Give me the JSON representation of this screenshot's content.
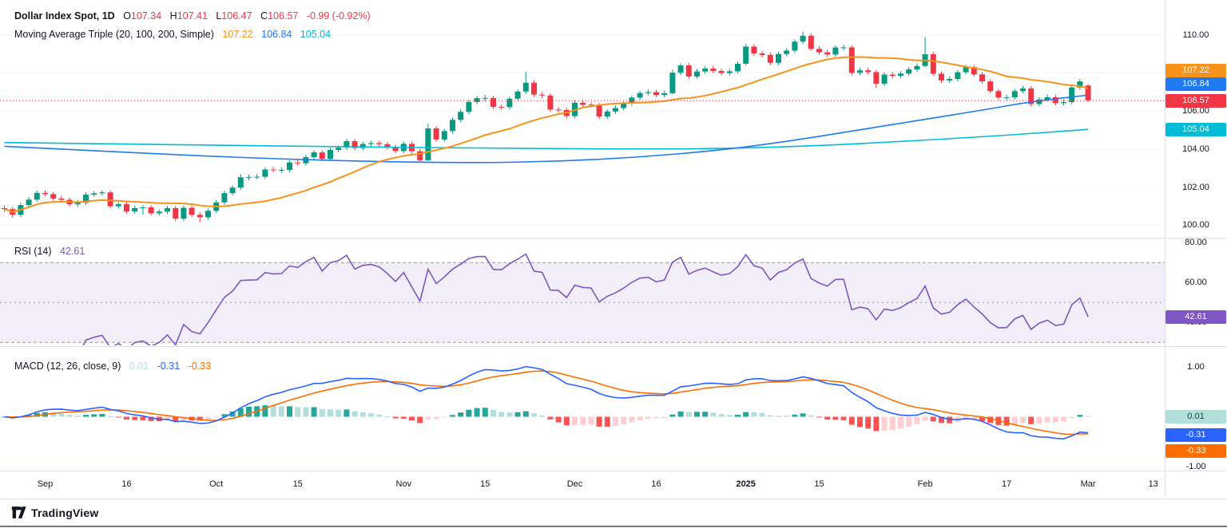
{
  "header": {
    "title": "Dollar Index Spot, 1D",
    "ohlc": {
      "o_label": "O",
      "o": "107.34",
      "h_label": "H",
      "h": "107.41",
      "l_label": "L",
      "l": "106.47",
      "c_label": "C",
      "c": "106.57",
      "change": "-0.99 (-0.92%)"
    },
    "ma_label": "Moving Average Triple (20, 100, 200, Simple)",
    "ma_values": {
      "ma20": "107.22",
      "ma100": "106.84",
      "ma200": "105.04"
    }
  },
  "rsi_legend": {
    "label": "RSI (14)",
    "value": "42.61"
  },
  "macd_legend": {
    "label": "MACD (12, 26, close, 9)",
    "hist": "0.01",
    "macd": "-0.31",
    "signal": "-0.33"
  },
  "axis": {
    "badge_values": {
      "ma20": "107.22",
      "ma100": "106.84",
      "last": "106.57",
      "ma200": "105.04",
      "rsi": "42.61",
      "macd_hist": "0.01",
      "macd_line": "-0.31",
      "macd_signal": "-0.33"
    }
  },
  "footer": {
    "brand": "TradingView"
  },
  "colors": {
    "up": "#089981",
    "down": "#F23645",
    "ma20": "#F7931A",
    "ma100": "#2179F2",
    "ma200": "#00BCD4",
    "rsi": "#7E57C2",
    "rsi_band": "rgba(126,87,194,0.10)",
    "macd_line": "#2962FF",
    "macd_signal": "#FF6D00",
    "hist_grow_above": "#26A69A",
    "hist_fall_above": "#B2DFDB",
    "hist_grow_below": "#FFCDD2",
    "hist_fall_below": "#FF5252",
    "hist_badge_bg": "#B2DFDB",
    "hist_badge_text": "#14463C",
    "axis_text": "#131722",
    "grid": "#F0F3FA",
    "separator": "#E0E3EB",
    "frame": "#4A4E57"
  },
  "chart_data": {
    "type": "candlestick",
    "title": "Dollar Index Spot, 1D",
    "price": {
      "ylim": [
        99.6,
        111.0
      ],
      "last_close": 106.57,
      "ticks": [
        {
          "value": 110,
          "label": "110.00"
        },
        {
          "value": 108,
          "label": "108.00"
        },
        {
          "value": 106,
          "label": "106.00"
        },
        {
          "value": 104,
          "label": "104.00"
        },
        {
          "value": 102,
          "label": "102.00"
        },
        {
          "value": 100,
          "label": "100.00"
        }
      ],
      "candles": [
        [
          100.9,
          101.05,
          100.7,
          100.85
        ],
        [
          100.85,
          100.97,
          100.4,
          100.55
        ],
        [
          100.55,
          101.18,
          100.43,
          101.06
        ],
        [
          101.06,
          101.48,
          100.94,
          101.35
        ],
        [
          101.35,
          101.82,
          101.23,
          101.7
        ],
        [
          101.7,
          101.84,
          101.52,
          101.64
        ],
        [
          101.64,
          101.76,
          101.29,
          101.41
        ],
        [
          101.41,
          101.55,
          101.22,
          101.34
        ],
        [
          101.34,
          101.46,
          100.98,
          101.1
        ],
        [
          101.1,
          101.33,
          100.96,
          101.19
        ],
        [
          101.19,
          101.73,
          101.07,
          101.61
        ],
        [
          101.61,
          101.8,
          101.49,
          101.68
        ],
        [
          101.68,
          101.85,
          101.56,
          101.73
        ],
        [
          101.73,
          101.85,
          100.88,
          101.0
        ],
        [
          101.0,
          101.23,
          100.88,
          101.11
        ],
        [
          101.11,
          101.23,
          100.61,
          100.73
        ],
        [
          100.73,
          101.02,
          100.61,
          100.9
        ],
        [
          100.9,
          101.06,
          100.56,
          100.94
        ],
        [
          100.94,
          101.06,
          100.51,
          100.63
        ],
        [
          100.63,
          100.84,
          100.51,
          100.72
        ],
        [
          100.72,
          101.02,
          100.6,
          100.9
        ],
        [
          100.9,
          101.02,
          100.23,
          100.35
        ],
        [
          100.35,
          101.04,
          100.23,
          100.92
        ],
        [
          100.92,
          101.04,
          100.43,
          100.55
        ],
        [
          100.55,
          100.67,
          100.16,
          100.42
        ],
        [
          100.42,
          100.88,
          100.3,
          100.76
        ],
        [
          100.76,
          101.32,
          100.64,
          101.2
        ],
        [
          101.2,
          101.81,
          101.08,
          101.69
        ],
        [
          101.69,
          102.1,
          101.57,
          101.98
        ],
        [
          101.98,
          102.69,
          101.86,
          102.52
        ],
        [
          102.52,
          102.66,
          102.35,
          102.54
        ],
        [
          102.54,
          102.7,
          102.42,
          102.55
        ],
        [
          102.55,
          103.05,
          102.43,
          102.93
        ],
        [
          102.93,
          103.07,
          102.77,
          102.89
        ],
        [
          102.89,
          103.03,
          102.75,
          102.91
        ],
        [
          102.91,
          103.42,
          102.79,
          103.3
        ],
        [
          103.3,
          103.44,
          103.14,
          103.26
        ],
        [
          103.26,
          103.7,
          103.14,
          103.58
        ],
        [
          103.58,
          103.95,
          103.46,
          103.83
        ],
        [
          103.83,
          103.95,
          103.37,
          103.49
        ],
        [
          103.49,
          104.08,
          103.37,
          103.96
        ],
        [
          103.96,
          104.2,
          103.84,
          104.08
        ],
        [
          104.08,
          104.54,
          103.96,
          104.42
        ],
        [
          104.42,
          104.54,
          103.94,
          104.06
        ],
        [
          104.06,
          104.39,
          103.94,
          104.27
        ],
        [
          104.27,
          104.44,
          104.15,
          104.32
        ],
        [
          104.32,
          104.44,
          104.14,
          104.26
        ],
        [
          104.26,
          104.38,
          103.98,
          104.1
        ],
        [
          104.1,
          104.22,
          103.78,
          103.9
        ],
        [
          103.9,
          104.4,
          103.78,
          104.28
        ],
        [
          104.28,
          104.4,
          103.77,
          103.89
        ],
        [
          103.89,
          104.01,
          103.3,
          103.42
        ],
        [
          103.42,
          105.33,
          103.37,
          105.09
        ],
        [
          105.09,
          105.21,
          104.39,
          104.51
        ],
        [
          104.51,
          105.07,
          104.39,
          104.95
        ],
        [
          104.95,
          105.66,
          104.83,
          105.54
        ],
        [
          105.54,
          106.08,
          105.42,
          105.96
        ],
        [
          105.96,
          106.6,
          105.84,
          106.48
        ],
        [
          106.48,
          106.8,
          106.36,
          106.68
        ],
        [
          106.68,
          106.85,
          106.51,
          106.69
        ],
        [
          106.69,
          106.81,
          106.1,
          106.22
        ],
        [
          106.22,
          106.36,
          106.07,
          106.21
        ],
        [
          106.21,
          106.77,
          106.09,
          106.65
        ],
        [
          106.65,
          107.15,
          106.53,
          107.03
        ],
        [
          107.03,
          108.07,
          106.91,
          107.49
        ],
        [
          107.49,
          107.61,
          106.75,
          106.87
        ],
        [
          106.87,
          107.01,
          106.68,
          106.82
        ],
        [
          106.82,
          106.94,
          105.96,
          106.08
        ],
        [
          106.08,
          106.22,
          105.92,
          106.06
        ],
        [
          106.06,
          106.18,
          105.62,
          105.74
        ],
        [
          105.74,
          106.56,
          105.62,
          106.44
        ],
        [
          106.44,
          106.58,
          106.2,
          106.34
        ],
        [
          106.34,
          106.48,
          106.18,
          106.32
        ],
        [
          106.32,
          106.44,
          105.59,
          105.71
        ],
        [
          105.71,
          106.1,
          105.59,
          105.98
        ],
        [
          105.98,
          106.3,
          105.86,
          106.16
        ],
        [
          106.16,
          106.52,
          106.04,
          106.4
        ],
        [
          106.4,
          106.83,
          106.28,
          106.71
        ],
        [
          106.71,
          107.07,
          106.59,
          106.95
        ],
        [
          106.95,
          107.14,
          106.81,
          107.0
        ],
        [
          107.0,
          107.12,
          106.73,
          106.85
        ],
        [
          106.85,
          107.08,
          106.72,
          106.94
        ],
        [
          106.94,
          108.18,
          106.88,
          108.02
        ],
        [
          108.02,
          108.52,
          107.9,
          108.4
        ],
        [
          108.4,
          108.52,
          107.7,
          107.82
        ],
        [
          107.82,
          108.2,
          107.7,
          108.08
        ],
        [
          108.08,
          108.36,
          107.96,
          108.24
        ],
        [
          108.24,
          108.38,
          107.99,
          108.11
        ],
        [
          108.11,
          108.23,
          107.88,
          108.0
        ],
        [
          108.0,
          108.21,
          107.88,
          108.09
        ],
        [
          108.09,
          108.61,
          107.97,
          108.49
        ],
        [
          108.49,
          109.54,
          108.41,
          109.39
        ],
        [
          109.39,
          109.51,
          108.91,
          109.03
        ],
        [
          109.03,
          109.17,
          108.81,
          108.95
        ],
        [
          108.95,
          109.07,
          108.42,
          108.54
        ],
        [
          108.54,
          109.12,
          108.42,
          109.0
        ],
        [
          109.0,
          109.3,
          108.88,
          109.18
        ],
        [
          109.18,
          109.77,
          109.06,
          109.65
        ],
        [
          109.65,
          110.18,
          109.53,
          109.96
        ],
        [
          109.96,
          110.08,
          109.15,
          109.27
        ],
        [
          109.27,
          109.41,
          108.95,
          109.09
        ],
        [
          109.09,
          109.23,
          108.83,
          108.97
        ],
        [
          108.97,
          109.46,
          108.85,
          109.34
        ],
        [
          109.34,
          109.49,
          109.2,
          109.35
        ],
        [
          109.35,
          109.47,
          107.89,
          108.01
        ],
        [
          108.01,
          108.28,
          107.89,
          108.14
        ],
        [
          108.14,
          108.28,
          107.91,
          108.05
        ],
        [
          108.05,
          108.17,
          107.22,
          107.44
        ],
        [
          107.44,
          108.04,
          107.32,
          107.92
        ],
        [
          107.92,
          108.06,
          107.71,
          107.85
        ],
        [
          107.85,
          108.09,
          107.73,
          107.97
        ],
        [
          107.97,
          108.31,
          107.85,
          108.19
        ],
        [
          108.19,
          108.51,
          108.07,
          108.37
        ],
        [
          108.37,
          109.88,
          108.31,
          108.99
        ],
        [
          108.99,
          109.11,
          107.84,
          107.96
        ],
        [
          107.96,
          108.08,
          107.49,
          107.61
        ],
        [
          107.61,
          107.83,
          107.48,
          107.69
        ],
        [
          107.69,
          108.16,
          107.57,
          108.04
        ],
        [
          108.04,
          108.43,
          107.92,
          108.31
        ],
        [
          108.31,
          108.43,
          107.81,
          107.93
        ],
        [
          107.93,
          108.05,
          107.44,
          107.56
        ],
        [
          107.56,
          107.68,
          106.93,
          107.05
        ],
        [
          107.05,
          107.17,
          106.59,
          106.71
        ],
        [
          106.71,
          106.86,
          106.57,
          106.72
        ],
        [
          106.72,
          107.17,
          106.6,
          107.05
        ],
        [
          107.05,
          107.33,
          106.93,
          107.19
        ],
        [
          107.19,
          107.31,
          106.25,
          106.37
        ],
        [
          106.37,
          106.73,
          106.25,
          106.61
        ],
        [
          106.61,
          106.87,
          106.49,
          106.73
        ],
        [
          106.73,
          106.85,
          106.3,
          106.42
        ],
        [
          106.42,
          106.61,
          106.3,
          106.47
        ],
        [
          106.47,
          107.36,
          106.35,
          107.24
        ],
        [
          107.24,
          107.68,
          107.12,
          107.56
        ],
        [
          107.34,
          107.41,
          106.47,
          106.57
        ]
      ],
      "ma": {
        "name": "Moving Average Triple",
        "method": "Simple",
        "params": [
          20,
          100,
          200
        ],
        "ma20_current": 107.22,
        "ma100_current": 106.84,
        "ma200_current": 105.04,
        "ma100_points": [
          [
            0,
            104.15
          ],
          [
            12,
            103.9
          ],
          [
            24,
            103.65
          ],
          [
            36,
            103.45
          ],
          [
            48,
            103.33
          ],
          [
            58,
            103.28
          ],
          [
            68,
            103.36
          ],
          [
            78,
            103.58
          ],
          [
            88,
            103.95
          ],
          [
            96,
            104.4
          ],
          [
            104,
            104.95
          ],
          [
            112,
            105.5
          ],
          [
            120,
            106.05
          ],
          [
            126,
            106.5
          ],
          [
            133,
            106.84
          ]
        ],
        "ma200_points": [
          [
            0,
            104.35
          ],
          [
            20,
            104.24
          ],
          [
            40,
            104.13
          ],
          [
            60,
            104.05
          ],
          [
            80,
            104.0
          ],
          [
            90,
            104.05
          ],
          [
            100,
            104.18
          ],
          [
            110,
            104.4
          ],
          [
            120,
            104.65
          ],
          [
            127,
            104.85
          ],
          [
            133,
            105.04
          ]
        ]
      }
    },
    "rsi": {
      "params": [
        14
      ],
      "current": 42.61,
      "bands": [
        70,
        50,
        30
      ],
      "ticks": [
        {
          "value": 80,
          "label": "80.00"
        },
        {
          "value": 60,
          "label": "60.00"
        },
        {
          "value": 40,
          "label": "40.00"
        }
      ]
    },
    "macd": {
      "params": [
        12,
        26,
        9
      ],
      "source": "close",
      "current": {
        "hist": 0.01,
        "macd": -0.31,
        "signal": -0.33
      },
      "ticks": [
        {
          "value": 1,
          "label": "1.00"
        },
        {
          "value": -1,
          "label": "-1.00"
        }
      ]
    },
    "x_ticks": [
      {
        "label": "Sep",
        "i": 5
      },
      {
        "label": "16",
        "i": 15
      },
      {
        "label": "Oct",
        "i": 26
      },
      {
        "label": "15",
        "i": 36
      },
      {
        "label": "Nov",
        "i": 49
      },
      {
        "label": "15",
        "i": 59
      },
      {
        "label": "Dec",
        "i": 70
      },
      {
        "label": "16",
        "i": 80
      },
      {
        "label": "2025",
        "i": 91,
        "emphasis": true
      },
      {
        "label": "15",
        "i": 100
      },
      {
        "label": "Feb",
        "i": 113
      },
      {
        "label": "17",
        "i": 123
      },
      {
        "label": "Mar",
        "i": 133
      },
      {
        "label": "13",
        "i": 141
      }
    ]
  }
}
